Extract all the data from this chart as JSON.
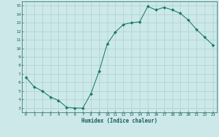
{
  "xlabel": "Humidex (Indice chaleur)",
  "ylabel": "",
  "x_values": [
    0,
    1,
    2,
    3,
    4,
    5,
    6,
    7,
    8,
    9,
    10,
    11,
    12,
    13,
    14,
    15,
    16,
    17,
    18,
    19,
    20,
    21,
    22,
    23
  ],
  "y_values": [
    6.6,
    5.5,
    5.0,
    4.3,
    3.9,
    3.1,
    3.0,
    3.0,
    4.7,
    7.3,
    10.5,
    11.9,
    12.8,
    13.0,
    13.1,
    14.9,
    14.5,
    14.8,
    14.5,
    14.1,
    13.3,
    12.2,
    11.3,
    10.4
  ],
  "xlim": [
    -0.5,
    23.5
  ],
  "ylim": [
    2.5,
    15.5
  ],
  "yticks": [
    3,
    4,
    5,
    6,
    7,
    8,
    9,
    10,
    11,
    12,
    13,
    14,
    15
  ],
  "xticks": [
    0,
    1,
    2,
    3,
    4,
    5,
    6,
    7,
    8,
    9,
    10,
    11,
    12,
    13,
    14,
    15,
    16,
    17,
    18,
    19,
    20,
    21,
    22,
    23
  ],
  "line_color": "#1a7a6e",
  "marker_color": "#1a7a6e",
  "bg_color": "#cce8e8",
  "grid_color": "#aacfcf",
  "tick_label_color": "#1a5a5a",
  "xlabel_color": "#1a5a5a"
}
